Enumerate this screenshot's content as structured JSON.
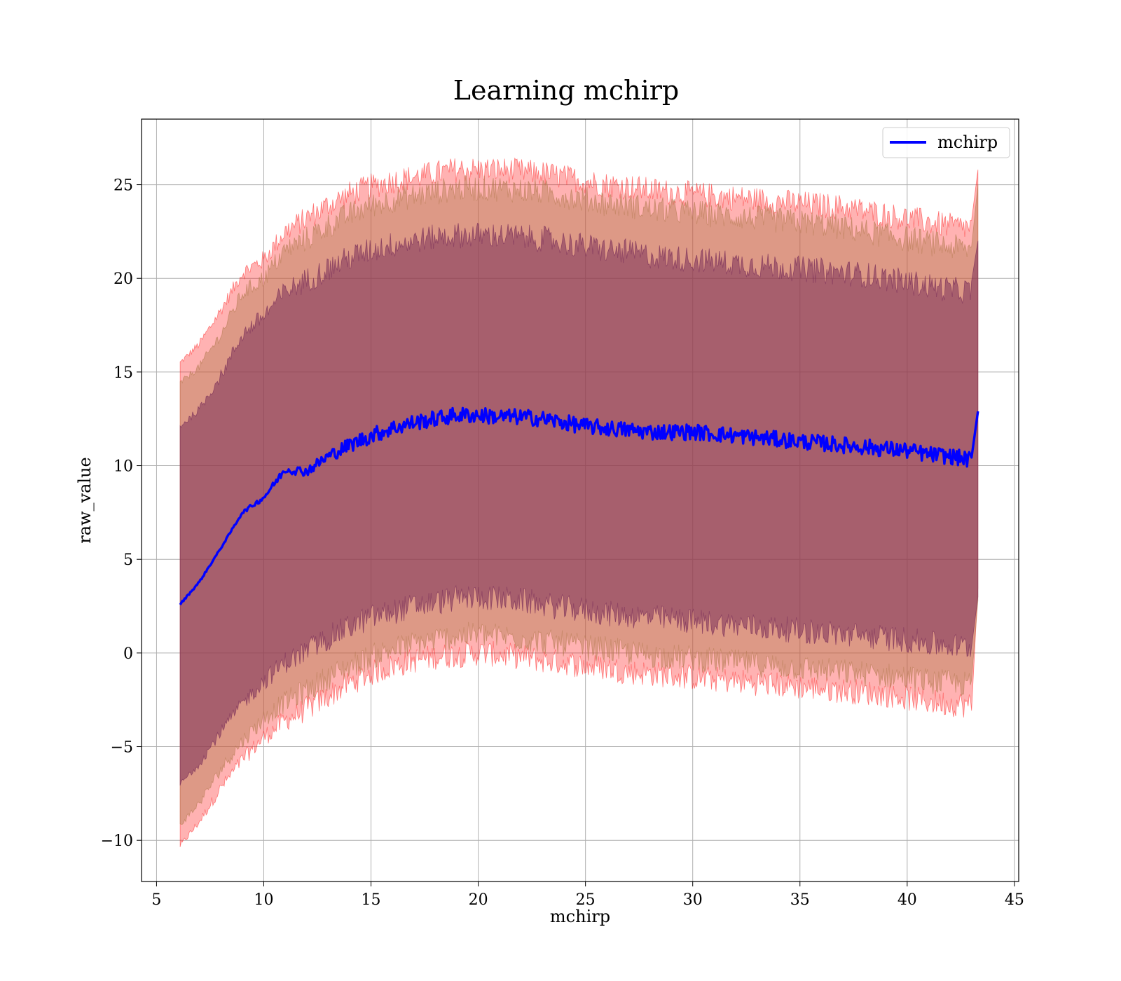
{
  "chart_data": {
    "type": "area",
    "title": "Learning mchirp",
    "xlabel": "mchirp",
    "ylabel": "raw_value",
    "xlim": [
      4.3,
      45.2
    ],
    "ylim": [
      -12.2,
      28.5
    ],
    "x_ticks": [
      "5",
      "10",
      "15",
      "20",
      "25",
      "30",
      "35",
      "40",
      "45"
    ],
    "x_tick_values": [
      5,
      10,
      15,
      20,
      25,
      30,
      35,
      40,
      45
    ],
    "y_ticks": [
      "−10",
      "−5",
      "0",
      "5",
      "10",
      "15",
      "20",
      "25"
    ],
    "y_tick_values": [
      -10,
      -5,
      0,
      5,
      10,
      15,
      20,
      25
    ],
    "grid": true,
    "legend": {
      "position": "top-right",
      "entries": [
        {
          "label": "mchirp",
          "color": "#0000ff"
        }
      ]
    },
    "x": [
      6.1,
      7,
      8,
      9,
      10,
      11,
      12,
      13,
      14,
      15,
      16,
      17,
      18,
      19,
      20,
      21,
      22,
      23,
      24,
      25,
      26,
      27,
      28,
      29,
      30,
      31,
      32,
      33,
      34,
      35,
      36,
      37,
      38,
      39,
      40,
      41,
      42,
      43,
      43.3
    ],
    "series": [
      {
        "name": "mchirp",
        "color": "#0000ff",
        "values": [
          2.6,
          3.8,
          5.6,
          7.5,
          8.3,
          9.8,
          9.7,
          10.5,
          11.1,
          11.6,
          12.0,
          12.3,
          12.5,
          12.7,
          12.7,
          12.6,
          12.6,
          12.5,
          12.3,
          12.1,
          12.0,
          11.9,
          11.8,
          11.8,
          11.8,
          11.7,
          11.6,
          11.5,
          11.4,
          11.3,
          11.2,
          11.1,
          11.0,
          10.9,
          10.8,
          10.6,
          10.5,
          10.3,
          12.9
        ]
      }
    ],
    "bands": [
      {
        "name": "outer",
        "color": "#ff0000",
        "opacity": 0.3,
        "upper": [
          15.5,
          16.5,
          18.3,
          20.3,
          21.0,
          22.5,
          23.2,
          23.9,
          24.5,
          24.9,
          25.2,
          25.4,
          25.6,
          25.8,
          25.8,
          25.8,
          25.7,
          25.6,
          25.4,
          25.2,
          25.0,
          24.9,
          24.7,
          24.6,
          24.5,
          24.4,
          24.3,
          24.2,
          24.1,
          24.0,
          23.9,
          23.8,
          23.6,
          23.4,
          23.2,
          23.0,
          22.8,
          22.7,
          25.8
        ],
        "lower": [
          -10.3,
          -9.0,
          -7.2,
          -5.7,
          -4.5,
          -3.6,
          -3.0,
          -2.3,
          -1.6,
          -1.1,
          -0.7,
          -0.4,
          -0.2,
          -0.1,
          0.0,
          -0.1,
          -0.2,
          -0.4,
          -0.5,
          -0.7,
          -0.8,
          -1.0,
          -1.1,
          -1.2,
          -1.3,
          -1.4,
          -1.5,
          -1.6,
          -1.7,
          -1.8,
          -1.9,
          -2.0,
          -2.1,
          -2.2,
          -2.4,
          -2.6,
          -2.7,
          -2.8,
          3.5
        ]
      },
      {
        "name": "middle",
        "color": "#b37a4f",
        "opacity": 0.45,
        "upper": [
          14.4,
          15.3,
          17.0,
          19.2,
          20.0,
          21.5,
          22.1,
          22.8,
          23.4,
          23.9,
          24.2,
          24.4,
          24.6,
          24.8,
          24.8,
          24.8,
          24.7,
          24.6,
          24.4,
          24.2,
          24.0,
          23.9,
          23.7,
          23.6,
          23.5,
          23.4,
          23.3,
          23.2,
          23.1,
          23.0,
          22.9,
          22.7,
          22.5,
          22.3,
          22.1,
          21.9,
          21.7,
          21.5,
          25.0
        ],
        "lower": [
          -9.2,
          -8.0,
          -6.2,
          -4.7,
          -3.5,
          -2.6,
          -2.0,
          -1.3,
          -0.7,
          -0.2,
          0.2,
          0.5,
          0.7,
          0.9,
          1.0,
          0.9,
          0.8,
          0.6,
          0.5,
          0.3,
          0.2,
          0.0,
          -0.1,
          -0.2,
          -0.3,
          -0.4,
          -0.5,
          -0.6,
          -0.7,
          -0.8,
          -0.9,
          -1.0,
          -1.1,
          -1.2,
          -1.3,
          -1.5,
          -1.6,
          -1.7,
          2.8
        ]
      },
      {
        "name": "inner",
        "color": "#7a2f5a",
        "opacity": 0.55,
        "upper": [
          12.1,
          13.0,
          14.8,
          17.0,
          18.0,
          19.3,
          19.9,
          20.5,
          21.1,
          21.5,
          21.8,
          22.0,
          22.2,
          22.3,
          22.3,
          22.3,
          22.2,
          22.1,
          21.9,
          21.7,
          21.5,
          21.4,
          21.2,
          21.1,
          21.0,
          20.9,
          20.8,
          20.7,
          20.6,
          20.5,
          20.4,
          20.3,
          20.2,
          20.0,
          19.8,
          19.6,
          19.4,
          19.3,
          22.0
        ],
        "lower": [
          -7.0,
          -5.9,
          -4.2,
          -2.7,
          -1.5,
          -0.5,
          0.1,
          0.8,
          1.4,
          1.9,
          2.2,
          2.5,
          2.7,
          2.9,
          3.0,
          2.9,
          2.8,
          2.6,
          2.4,
          2.3,
          2.1,
          2.0,
          1.9,
          1.8,
          1.7,
          1.6,
          1.5,
          1.4,
          1.3,
          1.2,
          1.1,
          1.0,
          0.9,
          0.8,
          0.7,
          0.5,
          0.4,
          0.3,
          3.0
        ]
      }
    ]
  }
}
